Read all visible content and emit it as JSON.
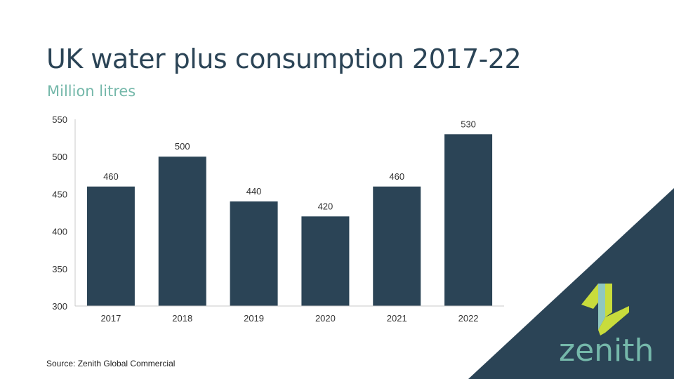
{
  "slide": {
    "title": "UK water plus consumption 2017-22",
    "subtitle": "Million litres",
    "source": "Source: Zenith Global Commercial"
  },
  "brand": {
    "name": "zenith",
    "logo_icon": "zenith-z-icon",
    "colors": {
      "navy": "#2b4456",
      "teal": "#75b8aa",
      "lime": "#c8dc3c",
      "logo_teal": "#8fc7bf"
    }
  },
  "chart_data": {
    "type": "bar",
    "categories": [
      "2017",
      "2018",
      "2019",
      "2020",
      "2021",
      "2022"
    ],
    "values": [
      460,
      500,
      440,
      420,
      460,
      530
    ],
    "data_labels": [
      "460",
      "500",
      "440",
      "420",
      "460",
      "530"
    ],
    "ylim": [
      300,
      550
    ],
    "yticks": [
      300,
      350,
      400,
      450,
      500,
      550
    ],
    "ytick_labels": [
      "300",
      "350",
      "400",
      "450",
      "500",
      "550"
    ],
    "xlabel": "",
    "ylabel": "",
    "grid": false,
    "bar_color": "#2b4456"
  }
}
